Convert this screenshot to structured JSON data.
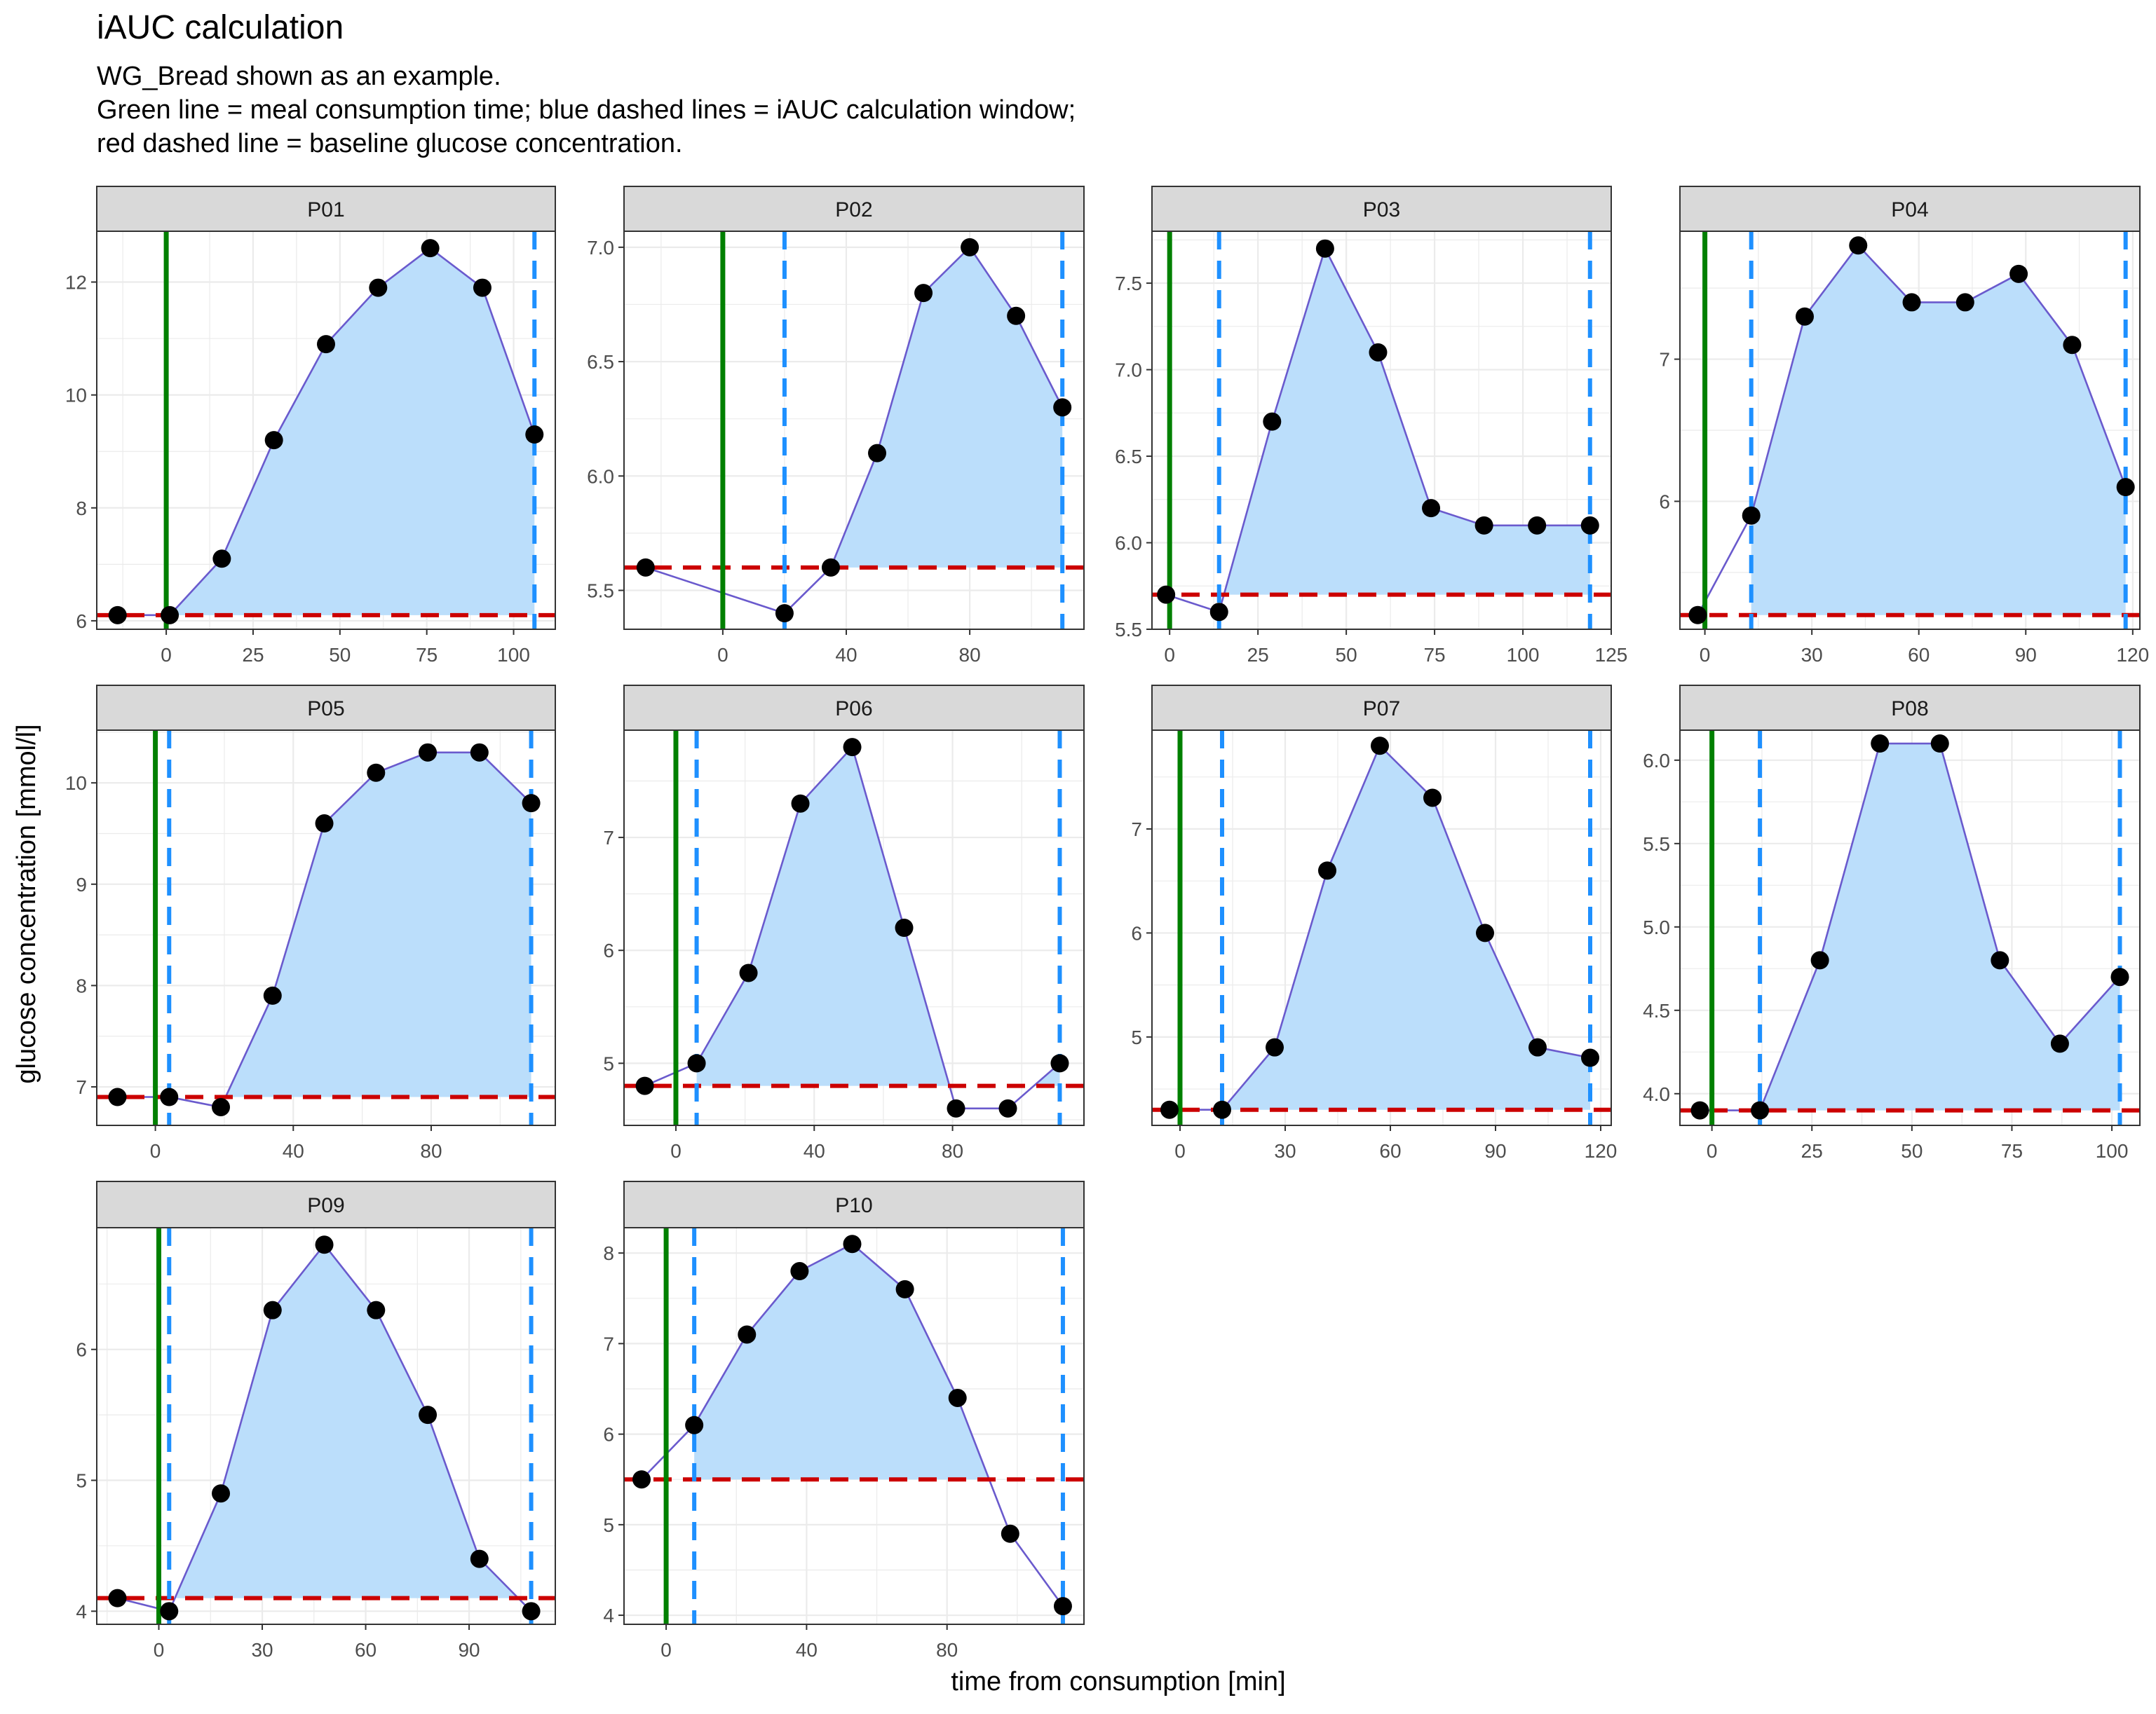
{
  "title": "iAUC calculation",
  "subtitle_lines": [
    "WG_Bread shown as an example.",
    "Green line = meal consumption time; blue dashed lines = iAUC calculation window;",
    "red dashed line = baseline glucose concentration."
  ],
  "colors": {
    "meal_line": "#008000",
    "window_line": "#1E90FF",
    "baseline_line": "#CC0000",
    "area_fill": "#BBDEFB",
    "curve_line": "#6A5ACD",
    "points": "#000000",
    "strip_bg": "#D9D9D9",
    "grid": "#EBEBEB"
  },
  "chart_data": {
    "type": "line",
    "xlabel": "time from consumption [min]",
    "ylabel": "glucose concentration [mmol/l]",
    "facets": [
      {
        "name": "P01",
        "meal_time": 0,
        "window": [
          0,
          106
        ],
        "baseline": 6.1,
        "xlim": [
          -20,
          112
        ],
        "ylim": [
          5.85,
          12.9
        ],
        "xticks": [
          0,
          25,
          50,
          75,
          100
        ],
        "yticks": [
          6,
          8,
          10,
          12
        ],
        "x": [
          -14,
          1,
          16,
          31,
          46,
          61,
          76,
          91,
          106
        ],
        "y": [
          6.1,
          6.1,
          7.1,
          9.2,
          10.9,
          11.9,
          12.6,
          11.9,
          9.3
        ]
      },
      {
        "name": "P02",
        "meal_time": 0,
        "window": [
          20,
          110
        ],
        "baseline": 5.6,
        "xlim": [
          -32,
          117
        ],
        "ylim": [
          5.33,
          7.07
        ],
        "xticks": [
          0,
          40,
          80
        ],
        "yticks": [
          5.5,
          6.0,
          6.5,
          7.0
        ],
        "x": [
          -25,
          20,
          35,
          50,
          65,
          80,
          95,
          110
        ],
        "y": [
          5.6,
          5.4,
          5.6,
          6.1,
          6.8,
          7.0,
          6.7,
          6.3
        ]
      },
      {
        "name": "P03",
        "meal_time": 0,
        "window": [
          14,
          119
        ],
        "baseline": 5.7,
        "xlim": [
          -5,
          125
        ],
        "ylim": [
          5.5,
          7.8
        ],
        "xticks": [
          0,
          25,
          50,
          75,
          100,
          125
        ],
        "yticks": [
          5.5,
          6.0,
          6.5,
          7.0,
          7.5
        ],
        "x": [
          -1,
          14,
          29,
          44,
          59,
          74,
          89,
          104,
          119
        ],
        "y": [
          5.7,
          5.6,
          6.7,
          7.7,
          7.1,
          6.2,
          6.1,
          6.1,
          6.1
        ]
      },
      {
        "name": "P04",
        "meal_time": 0,
        "window": [
          13,
          118
        ],
        "baseline": 5.2,
        "xlim": [
          -7,
          122
        ],
        "ylim": [
          5.1,
          7.9
        ],
        "xticks": [
          0,
          30,
          60,
          90,
          120
        ],
        "yticks": [
          6,
          7
        ],
        "x": [
          -2,
          13,
          28,
          43,
          58,
          73,
          88,
          103,
          118
        ],
        "y": [
          5.2,
          5.9,
          7.3,
          7.8,
          7.4,
          7.4,
          7.6,
          7.1,
          6.1
        ]
      },
      {
        "name": "P05",
        "meal_time": 0,
        "window": [
          4,
          109
        ],
        "baseline": 6.9,
        "xlim": [
          -17,
          116
        ],
        "ylim": [
          6.62,
          10.52
        ],
        "xticks": [
          0,
          40,
          80
        ],
        "yticks": [
          7,
          8,
          9,
          10
        ],
        "x": [
          -11,
          4,
          19,
          34,
          49,
          64,
          79,
          94,
          109
        ],
        "y": [
          6.9,
          6.9,
          6.8,
          7.9,
          9.6,
          10.1,
          10.3,
          10.3,
          9.8
        ]
      },
      {
        "name": "P06",
        "meal_time": 0,
        "window": [
          6,
          111
        ],
        "baseline": 4.8,
        "xlim": [
          -15,
          118
        ],
        "ylim": [
          4.45,
          7.95
        ],
        "xticks": [
          0,
          40,
          80
        ],
        "yticks": [
          5,
          6,
          7
        ],
        "x": [
          -9,
          6,
          21,
          36,
          51,
          66,
          81,
          96,
          111
        ],
        "y": [
          4.8,
          5.0,
          5.8,
          7.3,
          7.8,
          6.2,
          4.6,
          4.6,
          5.0
        ]
      },
      {
        "name": "P07",
        "meal_time": 0,
        "window": [
          12,
          117
        ],
        "baseline": 4.3,
        "xlim": [
          -8,
          123
        ],
        "ylim": [
          4.15,
          7.95
        ],
        "xticks": [
          0,
          30,
          60,
          90,
          120
        ],
        "yticks": [
          5,
          6,
          7
        ],
        "x": [
          -3,
          12,
          27,
          42,
          57,
          72,
          87,
          102,
          117
        ],
        "y": [
          4.3,
          4.3,
          4.9,
          6.6,
          7.8,
          7.3,
          6.0,
          4.9,
          4.8
        ]
      },
      {
        "name": "P08",
        "meal_time": 0,
        "window": [
          12,
          102
        ],
        "baseline": 3.9,
        "xlim": [
          -8,
          107
        ],
        "ylim": [
          3.81,
          6.18
        ],
        "xticks": [
          0,
          25,
          50,
          75,
          100
        ],
        "yticks": [
          4.0,
          4.5,
          5.0,
          5.5,
          6.0
        ],
        "x": [
          -3,
          12,
          27,
          42,
          57,
          72,
          87,
          102
        ],
        "y": [
          3.9,
          3.9,
          4.8,
          6.1,
          6.1,
          4.8,
          4.3,
          4.7
        ]
      },
      {
        "name": "P09",
        "meal_time": 0,
        "window": [
          3,
          108
        ],
        "baseline": 4.1,
        "xlim": [
          -18,
          115
        ],
        "ylim": [
          3.9,
          6.93
        ],
        "xticks": [
          0,
          30,
          60,
          90
        ],
        "yticks": [
          4,
          5,
          6
        ],
        "x": [
          -12,
          3,
          18,
          33,
          48,
          63,
          78,
          93,
          108
        ],
        "y": [
          4.1,
          4.0,
          4.9,
          6.3,
          6.8,
          6.3,
          5.5,
          4.4,
          4.0
        ]
      },
      {
        "name": "P10",
        "meal_time": 0,
        "window": [
          8,
          113
        ],
        "baseline": 5.5,
        "xlim": [
          -12,
          119
        ],
        "ylim": [
          3.9,
          8.28
        ],
        "xticks": [
          0,
          40,
          80
        ],
        "yticks": [
          4,
          5,
          6,
          7,
          8
        ],
        "x": [
          -7,
          8,
          23,
          38,
          53,
          68,
          83,
          98,
          113
        ],
        "y": [
          5.5,
          6.1,
          7.1,
          7.8,
          8.1,
          7.6,
          6.4,
          4.9,
          4.1
        ]
      }
    ]
  }
}
